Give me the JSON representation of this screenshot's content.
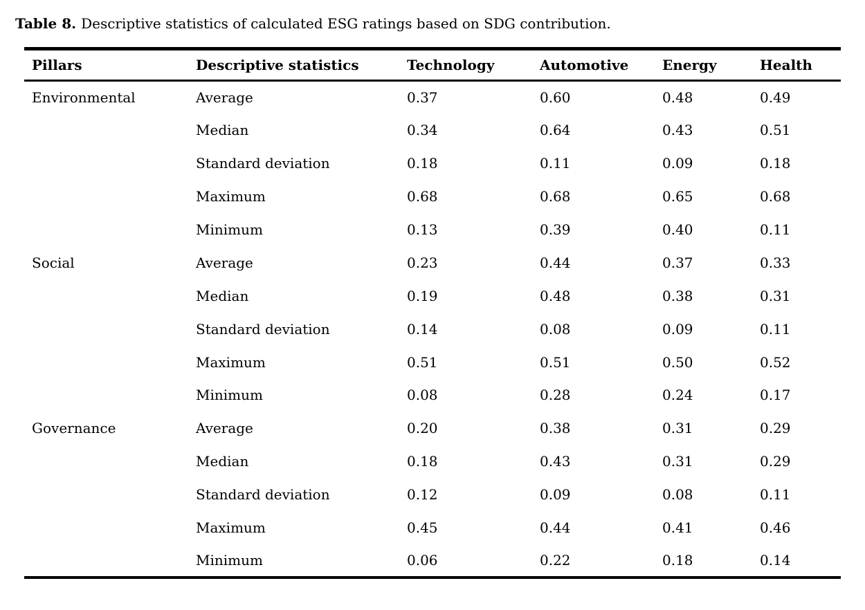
{
  "caption": {
    "label": "Table 8.",
    "text": "Descriptive statistics of calculated ESG ratings based on SDG contribution."
  },
  "table": {
    "columns": [
      "Pillars",
      "Descriptive statistics",
      "Technology",
      "Automotive",
      "Energy",
      "Health"
    ],
    "groups": [
      {
        "pillar": "Environmental",
        "rows": [
          {
            "stat": "Average",
            "values": [
              "0.37",
              "0.60",
              "0.48",
              "0.49"
            ]
          },
          {
            "stat": "Median",
            "values": [
              "0.34",
              "0.64",
              "0.43",
              "0.51"
            ]
          },
          {
            "stat": "Standard deviation",
            "values": [
              "0.18",
              "0.11",
              "0.09",
              "0.18"
            ]
          },
          {
            "stat": "Maximum",
            "values": [
              "0.68",
              "0.68",
              "0.65",
              "0.68"
            ]
          },
          {
            "stat": "Minimum",
            "values": [
              "0.13",
              "0.39",
              "0.40",
              "0.11"
            ]
          }
        ]
      },
      {
        "pillar": "Social",
        "rows": [
          {
            "stat": "Average",
            "values": [
              "0.23",
              "0.44",
              "0.37",
              "0.33"
            ]
          },
          {
            "stat": "Median",
            "values": [
              "0.19",
              "0.48",
              "0.38",
              "0.31"
            ]
          },
          {
            "stat": "Standard deviation",
            "values": [
              "0.14",
              "0.08",
              "0.09",
              "0.11"
            ]
          },
          {
            "stat": "Maximum",
            "values": [
              "0.51",
              "0.51",
              "0.50",
              "0.52"
            ]
          },
          {
            "stat": "Minimum",
            "values": [
              "0.08",
              "0.28",
              "0.24",
              "0.17"
            ]
          }
        ]
      },
      {
        "pillar": "Governance",
        "rows": [
          {
            "stat": "Average",
            "values": [
              "0.20",
              "0.38",
              "0.31",
              "0.29"
            ]
          },
          {
            "stat": "Median",
            "values": [
              "0.18",
              "0.43",
              "0.31",
              "0.29"
            ]
          },
          {
            "stat": "Standard deviation",
            "values": [
              "0.12",
              "0.09",
              "0.08",
              "0.11"
            ]
          },
          {
            "stat": "Maximum",
            "values": [
              "0.45",
              "0.44",
              "0.41",
              "0.46"
            ]
          },
          {
            "stat": "Minimum",
            "values": [
              "0.06",
              "0.22",
              "0.18",
              "0.14"
            ]
          }
        ]
      }
    ]
  },
  "colors": {
    "text": "#000000",
    "background": "#ffffff",
    "rule": "#000000"
  }
}
